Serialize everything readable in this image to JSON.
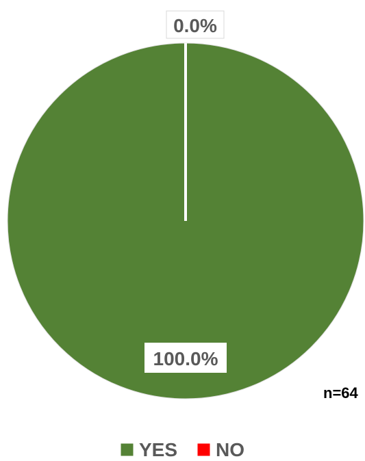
{
  "chart_data": {
    "type": "pie",
    "categories": [
      "YES",
      "NO"
    ],
    "values": [
      100.0,
      0.0
    ],
    "data_labels": [
      "100.0%",
      "0.0%"
    ],
    "colors": [
      "#548235",
      "#ff0000"
    ],
    "legend": {
      "placement": "bottom",
      "entries": [
        "YES",
        "NO"
      ]
    },
    "annotation": "n=64"
  }
}
